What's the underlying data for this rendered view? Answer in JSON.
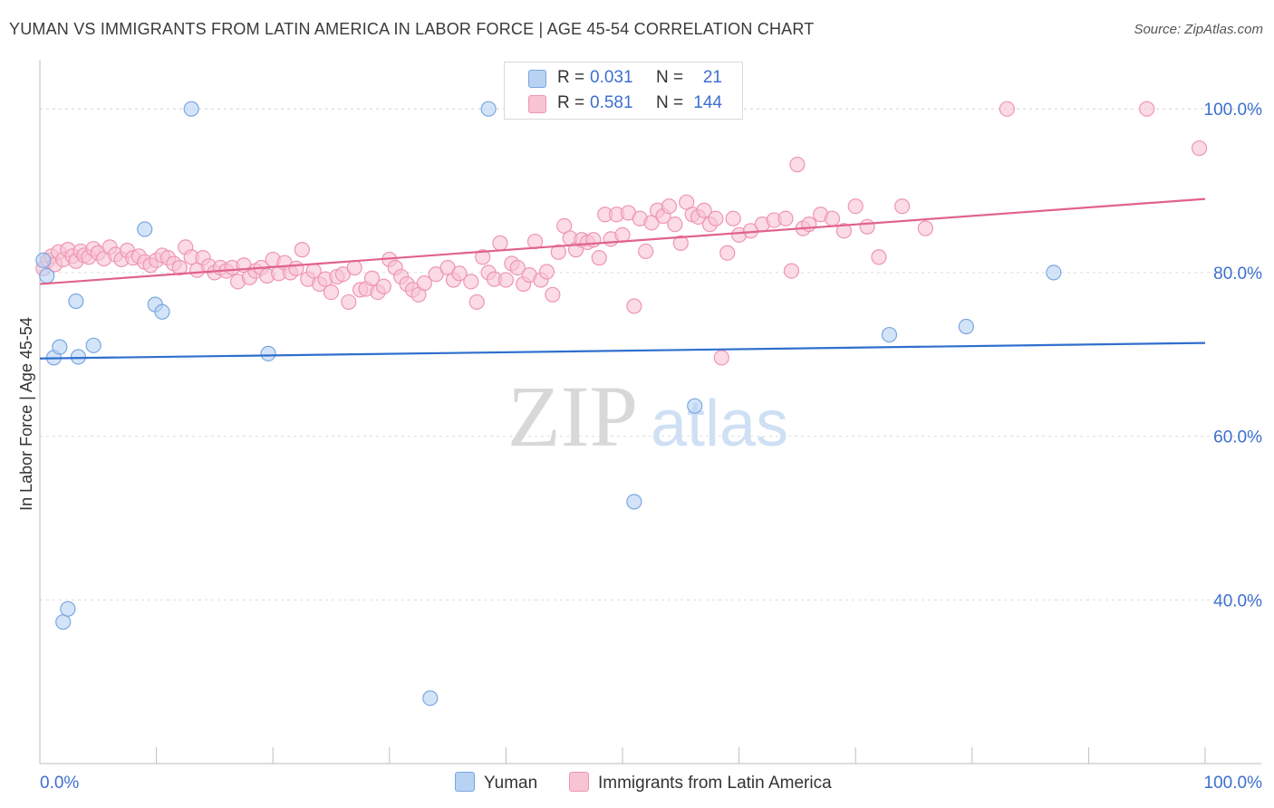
{
  "title": "YUMAN VS IMMIGRANTS FROM LATIN AMERICA IN LABOR FORCE | AGE 45-54 CORRELATION CHART",
  "source": "Source: ZipAtlas.com",
  "watermark": {
    "zip": "ZIP",
    "atlas": "atlas"
  },
  "legend": {
    "r_label": "R =",
    "n_label": "N =",
    "items": [
      {
        "name": "Yuman",
        "r": "0.031",
        "n": "21",
        "fill": "#b8d2f3",
        "stroke": "#7aa7e0"
      },
      {
        "name": "Immigrants from Latin America",
        "r": "0.581",
        "n": "144",
        "fill": "#f8c3d3",
        "stroke": "#ee96b2"
      }
    ]
  },
  "chart_data": {
    "type": "scatter",
    "title": "YUMAN VS IMMIGRANTS FROM LATIN AMERICA IN LABOR FORCE | AGE 45-54 CORRELATION CHART",
    "xlabel": "",
    "ylabel": "In Labor Force | Age 45-54",
    "xlim": [
      0,
      100
    ],
    "ylim": [
      20,
      106
    ],
    "x_tick_labels": [
      "0.0%",
      "100.0%"
    ],
    "y_ticks": [
      40,
      60,
      80,
      100
    ],
    "y_tick_labels": [
      "40.0%",
      "60.0%",
      "80.0%",
      "100.0%"
    ],
    "grid": true,
    "series": [
      {
        "name": "Yuman",
        "color": "#7aa7e0",
        "fill": "#b8d2f3",
        "trend": {
          "x": [
            0,
            100
          ],
          "y": [
            69.5,
            71.4
          ],
          "color": "#2f6fce"
        },
        "points": [
          [
            0.6,
            79.6
          ],
          [
            1.2,
            69.6
          ],
          [
            1.7,
            70.9
          ],
          [
            3.1,
            76.5
          ],
          [
            3.3,
            69.7
          ],
          [
            4.6,
            71.1
          ],
          [
            9.0,
            85.3
          ],
          [
            9.9,
            76.1
          ],
          [
            10.5,
            75.2
          ],
          [
            13.0,
            100.0
          ],
          [
            19.6,
            70.1
          ],
          [
            38.5,
            100.0
          ],
          [
            33.5,
            28.0
          ],
          [
            2.0,
            37.3
          ],
          [
            2.4,
            38.9
          ],
          [
            51.0,
            52.0
          ],
          [
            56.2,
            63.7
          ],
          [
            72.9,
            72.4
          ],
          [
            79.5,
            73.4
          ],
          [
            87.0,
            80.0
          ],
          [
            0.3,
            81.5
          ]
        ]
      },
      {
        "name": "Immigrants from Latin America",
        "color": "#ee96b2",
        "fill": "#f8c3d3",
        "trend": {
          "x": [
            0,
            100
          ],
          "y": [
            78.6,
            89.0
          ],
          "color": "#e0628e"
        },
        "points": [
          [
            0.3,
            80.5
          ],
          [
            0.7,
            81.5
          ],
          [
            1.0,
            82.0
          ],
          [
            1.3,
            81.0
          ],
          [
            1.6,
            82.5
          ],
          [
            2.0,
            81.6
          ],
          [
            2.4,
            82.8
          ],
          [
            2.8,
            82.0
          ],
          [
            3.1,
            81.4
          ],
          [
            3.5,
            82.6
          ],
          [
            3.8,
            82.1
          ],
          [
            4.2,
            81.9
          ],
          [
            4.6,
            82.9
          ],
          [
            5.0,
            82.4
          ],
          [
            5.5,
            81.7
          ],
          [
            6.0,
            83.1
          ],
          [
            6.5,
            82.2
          ],
          [
            7.0,
            81.6
          ],
          [
            7.5,
            82.7
          ],
          [
            8.0,
            81.8
          ],
          [
            8.5,
            82.0
          ],
          [
            9.0,
            81.3
          ],
          [
            9.5,
            80.9
          ],
          [
            10.0,
            81.5
          ],
          [
            10.5,
            82.1
          ],
          [
            11.0,
            81.8
          ],
          [
            11.5,
            81.1
          ],
          [
            12.0,
            80.6
          ],
          [
            12.5,
            83.1
          ],
          [
            13.0,
            81.9
          ],
          [
            13.5,
            80.3
          ],
          [
            14.0,
            81.8
          ],
          [
            14.5,
            80.8
          ],
          [
            15.0,
            80.0
          ],
          [
            15.5,
            80.6
          ],
          [
            16.0,
            80.2
          ],
          [
            16.5,
            80.6
          ],
          [
            17.0,
            78.9
          ],
          [
            17.5,
            80.9
          ],
          [
            18.0,
            79.4
          ],
          [
            18.5,
            80.2
          ],
          [
            19.0,
            80.6
          ],
          [
            19.5,
            79.6
          ],
          [
            20.0,
            81.6
          ],
          [
            20.5,
            79.9
          ],
          [
            21.0,
            81.2
          ],
          [
            21.5,
            80.0
          ],
          [
            22.0,
            80.5
          ],
          [
            22.5,
            82.8
          ],
          [
            23.0,
            79.2
          ],
          [
            23.5,
            80.2
          ],
          [
            24.0,
            78.6
          ],
          [
            24.5,
            79.2
          ],
          [
            25.0,
            77.6
          ],
          [
            25.5,
            79.5
          ],
          [
            26.0,
            79.8
          ],
          [
            26.5,
            76.4
          ],
          [
            27.0,
            80.6
          ],
          [
            27.5,
            77.9
          ],
          [
            28.0,
            78.0
          ],
          [
            28.5,
            79.3
          ],
          [
            29.0,
            77.6
          ],
          [
            29.5,
            78.3
          ],
          [
            30.0,
            81.6
          ],
          [
            30.5,
            80.6
          ],
          [
            31.0,
            79.5
          ],
          [
            31.5,
            78.6
          ],
          [
            32.0,
            77.9
          ],
          [
            32.5,
            77.3
          ],
          [
            33.0,
            78.7
          ],
          [
            34.0,
            79.8
          ],
          [
            35.0,
            80.6
          ],
          [
            35.5,
            79.1
          ],
          [
            36.0,
            79.9
          ],
          [
            37.0,
            78.9
          ],
          [
            37.5,
            76.4
          ],
          [
            38.0,
            81.9
          ],
          [
            38.5,
            80.0
          ],
          [
            39.0,
            79.2
          ],
          [
            39.5,
            83.6
          ],
          [
            40.0,
            79.1
          ],
          [
            40.5,
            81.1
          ],
          [
            41.0,
            80.6
          ],
          [
            41.5,
            78.6
          ],
          [
            42.0,
            79.7
          ],
          [
            42.5,
            83.8
          ],
          [
            43.0,
            79.1
          ],
          [
            43.5,
            80.1
          ],
          [
            44.0,
            77.3
          ],
          [
            44.5,
            82.5
          ],
          [
            45.0,
            85.7
          ],
          [
            45.5,
            84.2
          ],
          [
            46.0,
            82.8
          ],
          [
            46.5,
            84.0
          ],
          [
            47.0,
            83.7
          ],
          [
            47.5,
            84.0
          ],
          [
            48.0,
            81.8
          ],
          [
            48.5,
            87.1
          ],
          [
            49.0,
            84.1
          ],
          [
            49.5,
            87.1
          ],
          [
            50.0,
            84.6
          ],
          [
            50.5,
            87.3
          ],
          [
            51.0,
            75.9
          ],
          [
            51.5,
            86.6
          ],
          [
            52.0,
            82.6
          ],
          [
            52.5,
            86.1
          ],
          [
            53.0,
            87.6
          ],
          [
            53.5,
            86.9
          ],
          [
            54.0,
            88.1
          ],
          [
            54.5,
            85.9
          ],
          [
            55.0,
            83.6
          ],
          [
            55.5,
            88.6
          ],
          [
            56.0,
            87.1
          ],
          [
            56.5,
            86.8
          ],
          [
            57.0,
            87.6
          ],
          [
            57.5,
            85.9
          ],
          [
            58.0,
            86.6
          ],
          [
            58.5,
            69.6
          ],
          [
            59.0,
            82.4
          ],
          [
            59.5,
            86.6
          ],
          [
            60.0,
            84.6
          ],
          [
            61.0,
            85.1
          ],
          [
            62.0,
            85.9
          ],
          [
            63.0,
            86.4
          ],
          [
            64.0,
            86.6
          ],
          [
            64.5,
            80.2
          ],
          [
            65.0,
            93.2
          ],
          [
            65.5,
            85.4
          ],
          [
            66.0,
            85.9
          ],
          [
            67.0,
            87.1
          ],
          [
            68.0,
            86.6
          ],
          [
            69.0,
            85.1
          ],
          [
            70.0,
            88.1
          ],
          [
            71.0,
            85.6
          ],
          [
            72.0,
            81.9
          ],
          [
            74.0,
            88.1
          ],
          [
            76.0,
            85.4
          ],
          [
            83.0,
            100.0
          ],
          [
            95.0,
            100.0
          ],
          [
            99.5,
            95.2
          ]
        ]
      }
    ]
  }
}
